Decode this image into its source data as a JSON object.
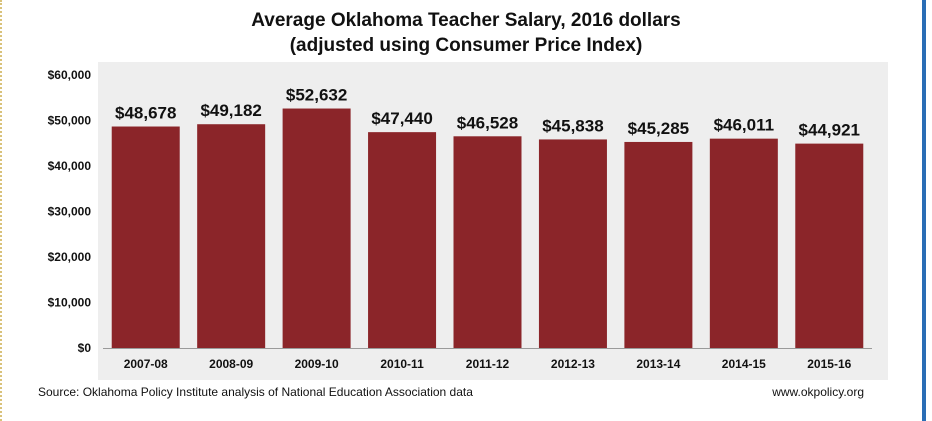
{
  "chart_data": {
    "type": "bar",
    "title": "Average Oklahoma Teacher Salary, 2016 dollars",
    "subtitle": "(adjusted using Consumer Price Index)",
    "categories": [
      "2007-08",
      "2008-09",
      "2009-10",
      "2010-11",
      "2011-12",
      "2012-13",
      "2013-14",
      "2014-15",
      "2015-16"
    ],
    "values": [
      48678,
      49182,
      52632,
      47440,
      46528,
      45838,
      45285,
      46011,
      44921
    ],
    "value_labels": [
      "$48,678",
      "$49,182",
      "$52,632",
      "$47,440",
      "$46,528",
      "$45,838",
      "$45,285",
      "$46,011",
      "$44,921"
    ],
    "ylim": [
      0,
      60000
    ],
    "y_ticks": [
      0,
      10000,
      20000,
      30000,
      40000,
      50000,
      60000
    ],
    "y_tick_labels": [
      "$0",
      "$10,000",
      "$20,000",
      "$30,000",
      "$40,000",
      "$50,000",
      "$60,000"
    ],
    "grid": false,
    "bar_color": "#8b2529",
    "background_color": "#eeeeee"
  },
  "footer": {
    "source": "Source: Oklahoma Policy Institute analysis of National Education Association data",
    "url": "www.okpolicy.org"
  }
}
